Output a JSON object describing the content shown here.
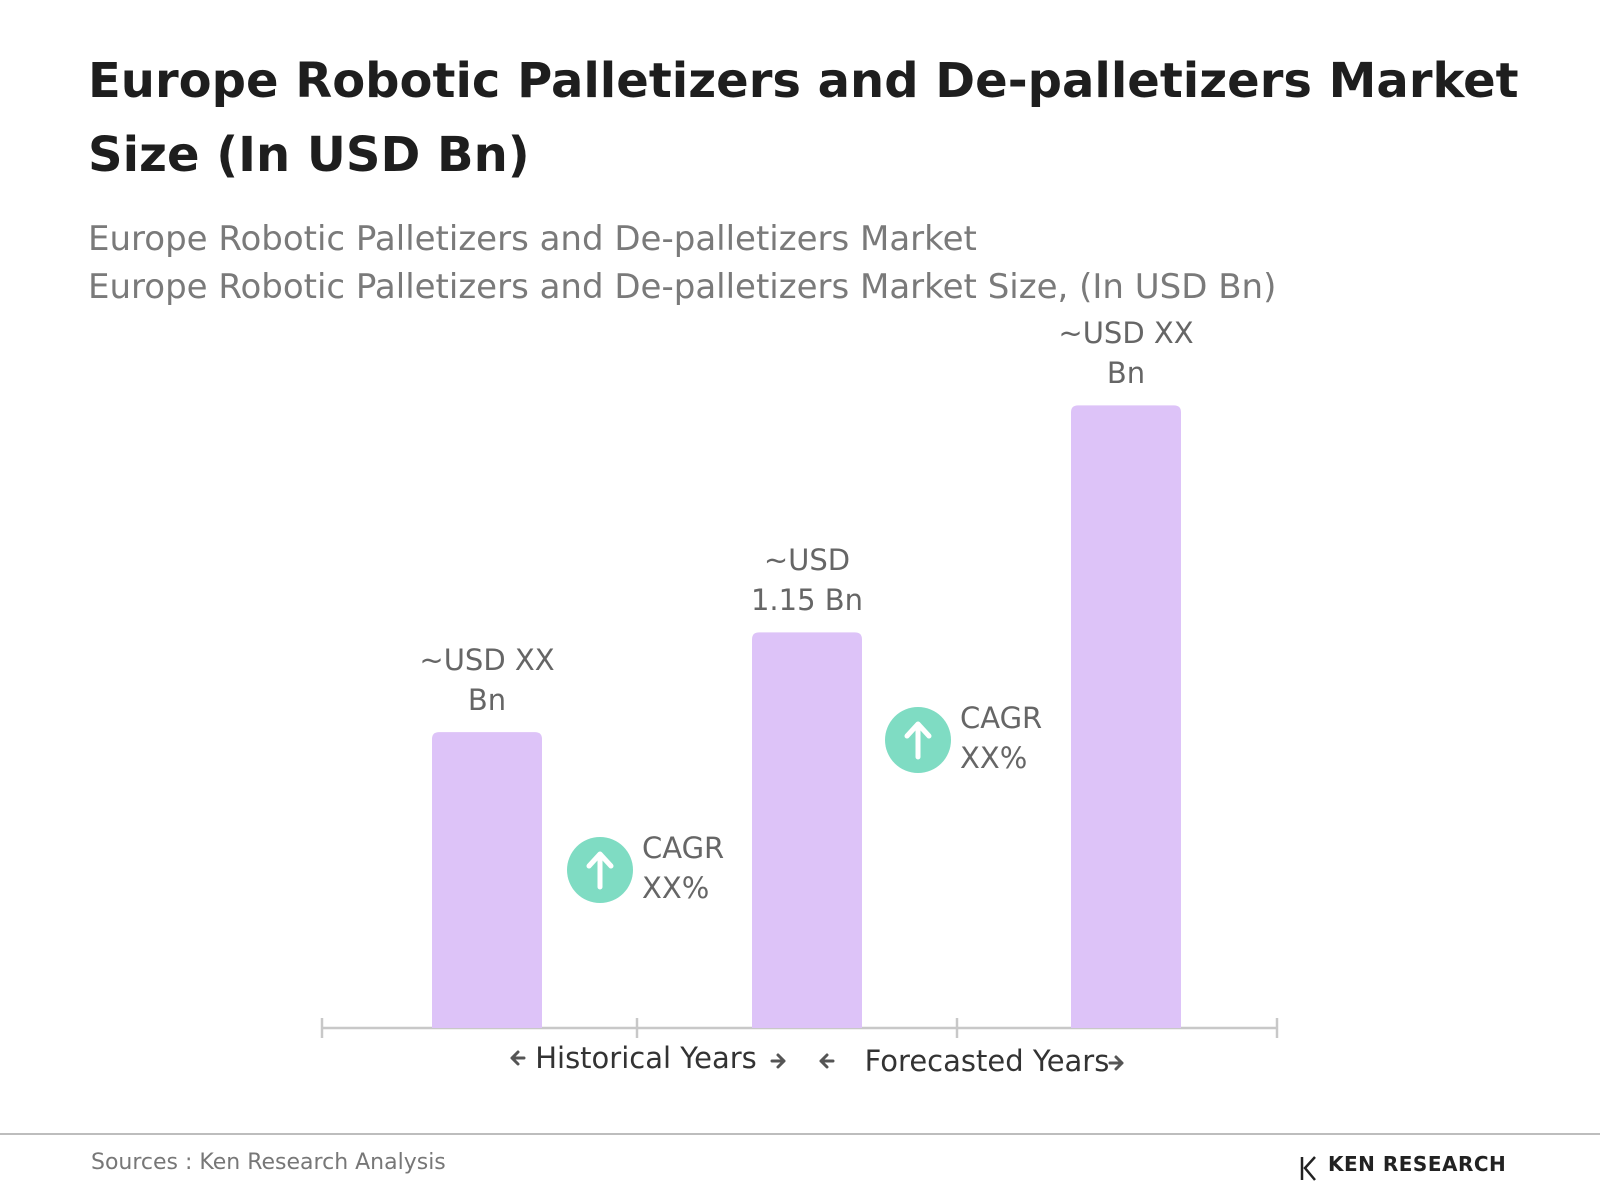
{
  "chart_data": {
    "type": "bar",
    "title": "Europe Robotic Palletizers and De-palletizers Market Size (In USD Bn)",
    "subtitle": [
      "Europe Robotic Palletizers and De-palletizers Market",
      "Europe Robotic Palletizers and De-palletizers Market Size, (In USD Bn)"
    ],
    "categories": [
      null,
      null,
      null
    ],
    "values": [
      0.86,
      1.15,
      1.81
    ],
    "value_labels": [
      "~USD XX Bn",
      "~USD 1.15 Bn",
      "~USD XX Bn"
    ],
    "color": "#ddc3f8",
    "annotations": [
      "CAGR XX%",
      "CAGR XX%"
    ],
    "annotation_color": "#7fdcc3",
    "periods": [
      "Historical Years",
      "Forecasted Years"
    ],
    "source": "Sources : Ken Research Analysis",
    "logo": "KEN RESEARCH"
  }
}
